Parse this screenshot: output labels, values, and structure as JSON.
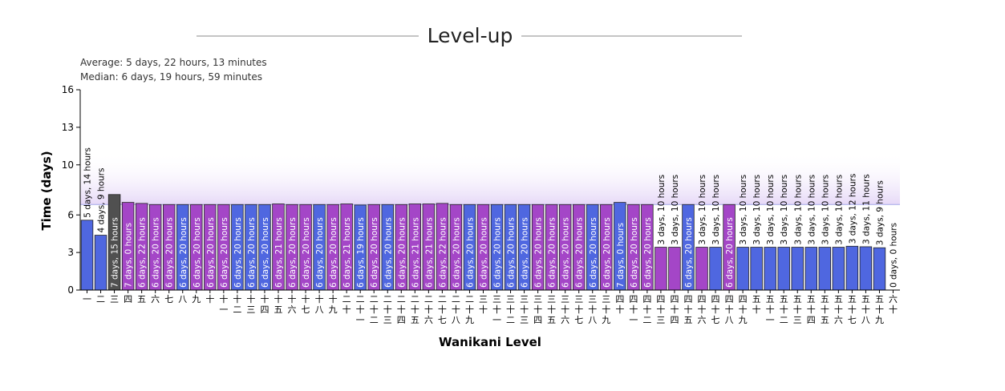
{
  "chart_data": {
    "type": "bar",
    "title": "Level-up",
    "stats": {
      "average": "Average: 5 days, 22 hours, 13 minutes",
      "median": "Median: 6 days, 19 hours, 59 minutes"
    },
    "xlabel": "Wanikani Level",
    "ylabel": "Time (days)",
    "ylim": [
      0,
      16
    ],
    "yticks": [
      0,
      3,
      6,
      10,
      13,
      16
    ],
    "median_line": 6.83,
    "categories": [
      "一",
      "二",
      "三",
      "四",
      "五",
      "六",
      "七",
      "八",
      "九",
      "十",
      "十一",
      "十二",
      "十三",
      "十四",
      "十五",
      "十六",
      "十七",
      "十八",
      "十九",
      "二十",
      "二十一",
      "二十二",
      "二十三",
      "二十四",
      "二十五",
      "二十六",
      "二十七",
      "二十八",
      "二十九",
      "三十",
      "三十一",
      "三十二",
      "三十三",
      "三十四",
      "三十五",
      "三十六",
      "三十七",
      "三十八",
      "三十九",
      "四十",
      "四十一",
      "四十二",
      "四十三",
      "四十四",
      "四十五",
      "四十六",
      "四十七",
      "四十八",
      "四十九",
      "五十",
      "五十一",
      "五十二",
      "五十三",
      "五十四",
      "五十五",
      "五十六",
      "五十七",
      "五十八",
      "五十九",
      "六十"
    ],
    "values": [
      5.58,
      4.38,
      7.63,
      7.0,
      6.92,
      6.83,
      6.83,
      6.83,
      6.83,
      6.83,
      6.83,
      6.83,
      6.83,
      6.83,
      6.88,
      6.83,
      6.83,
      6.83,
      6.83,
      6.88,
      6.79,
      6.83,
      6.83,
      6.83,
      6.88,
      6.88,
      6.92,
      6.83,
      6.83,
      6.83,
      6.83,
      6.83,
      6.83,
      6.83,
      6.83,
      6.83,
      6.83,
      6.83,
      6.83,
      7.0,
      6.83,
      6.83,
      3.42,
      3.42,
      6.83,
      3.42,
      3.42,
      6.83,
      3.42,
      3.42,
      3.42,
      3.42,
      3.42,
      3.42,
      3.42,
      3.42,
      3.5,
      3.46,
      3.38,
      0
    ],
    "bar_labels": [
      "5 days, 14 hours",
      "4 days, 9 hours",
      "7 days, 15 hours",
      "7 days, 0 hours",
      "6 days, 22 hours",
      "6 days, 20 hours",
      "6 days, 20 hours",
      "6 days, 20 hours",
      "6 days, 20 hours",
      "6 days, 20 hours",
      "6 days, 20 hours",
      "6 days, 20 hours",
      "6 days, 20 hours",
      "6 days, 20 hours",
      "6 days, 21 hours",
      "6 days, 20 hours",
      "6 days, 20 hours",
      "6 days, 20 hours",
      "6 days, 20 hours",
      "6 days, 21 hours",
      "6 days, 19 hours",
      "6 days, 20 hours",
      "6 days, 20 hours",
      "6 days, 20 hours",
      "6 days, 21 hours",
      "6 days, 21 hours",
      "6 days, 22 hours",
      "6 days, 20 hours",
      "6 days, 20 hours",
      "6 days, 20 hours",
      "6 days, 20 hours",
      "6 days, 20 hours",
      "6 days, 20 hours",
      "6 days, 20 hours",
      "6 days, 20 hours",
      "6 days, 20 hours",
      "6 days, 20 hours",
      "6 days, 20 hours",
      "6 days, 20 hours",
      "7 days, 0 hours",
      "6 days, 20 hours",
      "6 days, 20 hours",
      "3 days, 10 hours",
      "3 days, 10 hours",
      "6 days, 20 hours",
      "3 days, 10 hours",
      "3 days, 10 hours",
      "6 days, 20 hours",
      "3 days, 10 hours",
      "3 days, 10 hours",
      "3 days, 10 hours",
      "3 days, 10 hours",
      "3 days, 10 hours",
      "3 days, 10 hours",
      "3 days, 10 hours",
      "3 days, 10 hours",
      "3 days, 12 hours",
      "3 days, 11 hours",
      "3 days, 9 hours",
      "0 days, 0 hours"
    ],
    "bar_colors": [
      "#4f67e0",
      "#4f67e0",
      "#505050",
      "#a446c7",
      "#a446c7",
      "#a446c7",
      "#a446c7",
      "#4f67e0",
      "#a446c7",
      "#a446c7",
      "#a446c7",
      "#4f67e0",
      "#4f67e0",
      "#4f67e0",
      "#a446c7",
      "#a446c7",
      "#a446c7",
      "#4f67e0",
      "#a446c7",
      "#a446c7",
      "#4f67e0",
      "#a446c7",
      "#4f67e0",
      "#a446c7",
      "#a446c7",
      "#a446c7",
      "#a446c7",
      "#a446c7",
      "#4f67e0",
      "#a446c7",
      "#4f67e0",
      "#4f67e0",
      "#4f67e0",
      "#a446c7",
      "#a446c7",
      "#a446c7",
      "#a446c7",
      "#4f67e0",
      "#a446c7",
      "#4f67e0",
      "#a446c7",
      "#a446c7",
      "#a446c7",
      "#a446c7",
      "#4f67e0",
      "#a446c7",
      "#4f67e0",
      "#a446c7",
      "#4f67e0",
      "#4f67e0",
      "#4f67e0",
      "#4f67e0",
      "#4f67e0",
      "#4f67e0",
      "#4f67e0",
      "#4f67e0",
      "#4f67e0",
      "#4f67e0",
      "#4f67e0",
      "#4aa8ff"
    ],
    "colors": {
      "median_band": "#e8dcf8",
      "median_line": "#a4a8e8"
    },
    "grid": false,
    "legend": "none"
  }
}
